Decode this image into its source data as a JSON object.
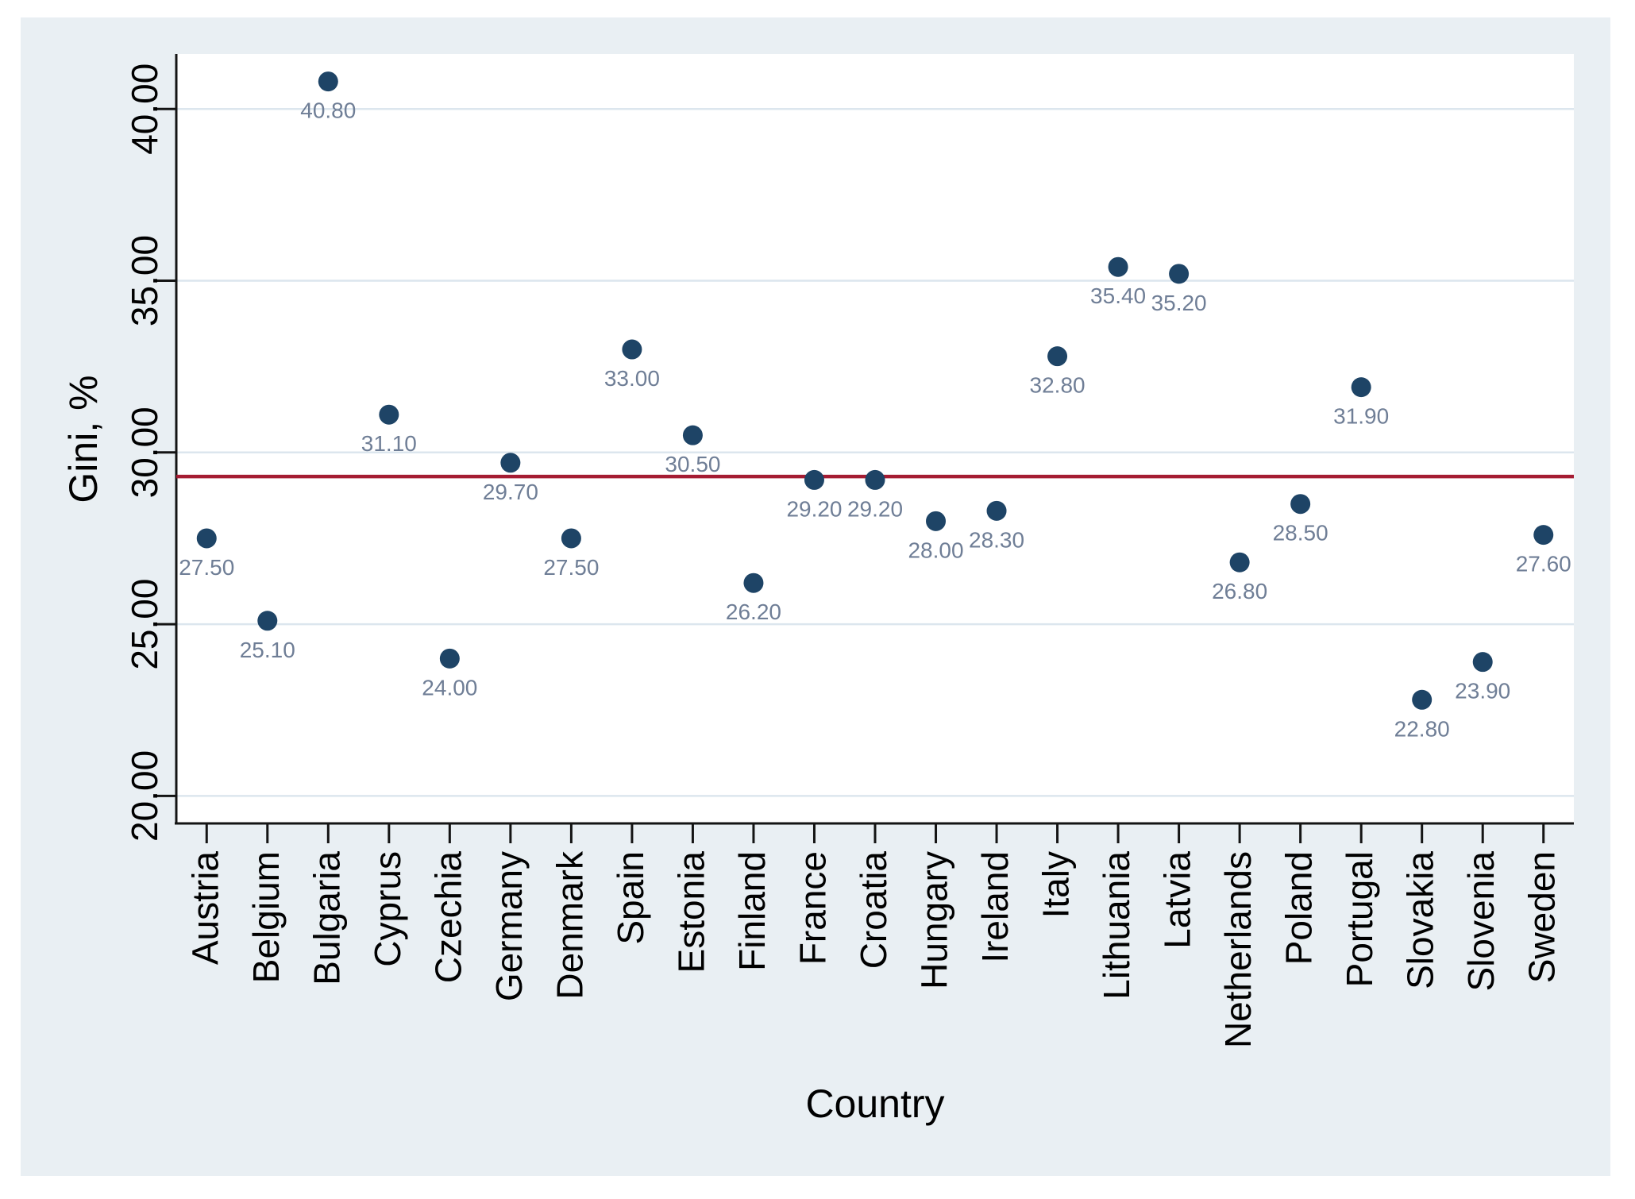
{
  "window": {
    "description": "Stata-style scatter plot of Gini coefficient by EU country"
  },
  "chart_data": {
    "type": "scatter",
    "title": "",
    "xlabel": "Country",
    "ylabel": "Gini, %",
    "categories": [
      "Austria",
      "Belgium",
      "Bulgaria",
      "Cyprus",
      "Czechia",
      "Germany",
      "Denmark",
      "Spain",
      "Estonia",
      "Finland",
      "France",
      "Croatia",
      "Hungary",
      "Ireland",
      "Italy",
      "Lithuania",
      "Latvia",
      "Netherlands",
      "Poland",
      "Portugal",
      "Slovakia",
      "Slovenia",
      "Sweden"
    ],
    "values": [
      27.5,
      25.1,
      40.8,
      31.1,
      24.0,
      29.7,
      27.5,
      33.0,
      30.5,
      26.2,
      29.2,
      29.2,
      28.0,
      28.3,
      32.8,
      35.4,
      35.2,
      26.8,
      28.5,
      31.9,
      22.8,
      23.9,
      27.6
    ],
    "point_labels": [
      "27.50",
      "25.10",
      "40.80",
      "31.10",
      "24.00",
      "29.70",
      "27.50",
      "33.00",
      "30.50",
      "26.20",
      "29.20",
      "29.20",
      "28.00",
      "28.30",
      "32.80",
      "35.40",
      "35.20",
      "26.80",
      "28.50",
      "31.90",
      "22.80",
      "23.90",
      "27.60"
    ],
    "y_ticks": [
      {
        "value": 20,
        "label": "20.00"
      },
      {
        "value": 25,
        "label": "25.00"
      },
      {
        "value": 30,
        "label": "30.00"
      },
      {
        "value": 35,
        "label": "35.00"
      },
      {
        "value": 40,
        "label": "40.00"
      }
    ],
    "ylim": [
      19.2,
      41.6
    ],
    "grid": true,
    "legend": null,
    "reference_line": {
      "value": 29.3,
      "label": ""
    }
  },
  "colors": {
    "canvas_bg": "#e9eff3",
    "plot_bg": "#ffffff",
    "grid": "#dce6ee",
    "axis": "#141414",
    "marker": "#1e4466",
    "value_label": "#6f7e96",
    "reference_line": "#a51c33",
    "tick_label": "#000000"
  }
}
